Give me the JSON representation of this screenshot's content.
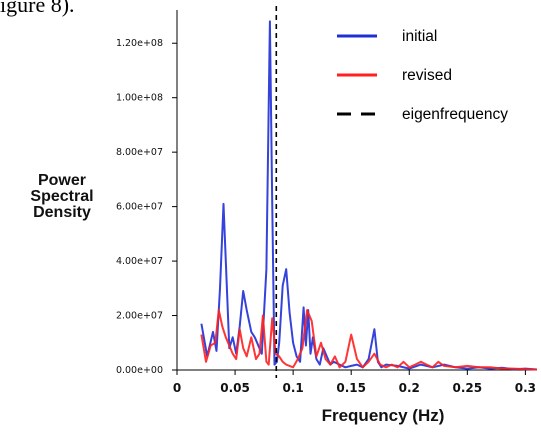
{
  "page": {
    "caption_fragment": "igure 8)."
  },
  "chart_data": {
    "type": "line",
    "title": "",
    "xlabel": "Frequency (Hz)",
    "ylabel": "Power Spectral Density",
    "ylabel_lines": [
      "Power",
      "Spectral",
      "Density"
    ],
    "xlim": [
      0,
      0.31
    ],
    "ylim": [
      0,
      130000000
    ],
    "x_ticks": [
      0,
      0.05,
      0.1,
      0.15,
      0.2,
      0.25,
      0.3
    ],
    "x_tick_labels": [
      "0",
      "0.05",
      "0.1",
      "0.15",
      "0.2",
      "0.25",
      "0.3"
    ],
    "y_ticks": [
      0,
      20000000,
      40000000,
      60000000,
      80000000,
      100000000,
      120000000
    ],
    "y_tick_labels": [
      "0.00e+00",
      "2.00e+07",
      "4.00e+07",
      "6.00e+07",
      "8.00e+07",
      "1.00e+08",
      "1.20e+08"
    ],
    "grid": false,
    "legend_position": "top-right",
    "series": [
      {
        "name": "initial",
        "color": "#1f2fd6",
        "style": "solid",
        "x": [
          0.021,
          0.026,
          0.031,
          0.034,
          0.037,
          0.04,
          0.042,
          0.045,
          0.048,
          0.051,
          0.054,
          0.057,
          0.06,
          0.064,
          0.067,
          0.07,
          0.073,
          0.077,
          0.08,
          0.082,
          0.084,
          0.086,
          0.088,
          0.091,
          0.094,
          0.097,
          0.1,
          0.103,
          0.106,
          0.109,
          0.111,
          0.113,
          0.115,
          0.117,
          0.12,
          0.123,
          0.126,
          0.129,
          0.132,
          0.135,
          0.14,
          0.145,
          0.15,
          0.155,
          0.16,
          0.165,
          0.17,
          0.173,
          0.176,
          0.18,
          0.19,
          0.2,
          0.21,
          0.22,
          0.23,
          0.24,
          0.25,
          0.26,
          0.27,
          0.28,
          0.29,
          0.3,
          0.31
        ],
        "values": [
          17000000,
          5000000,
          14000000,
          7000000,
          30000000,
          61000000,
          40000000,
          8000000,
          12000000,
          6000000,
          16000000,
          29000000,
          22000000,
          14000000,
          12000000,
          9000000,
          6000000,
          37000000,
          128000000,
          62000000,
          2000000,
          3000000,
          10000000,
          31000000,
          37000000,
          21000000,
          10000000,
          5000000,
          3000000,
          23000000,
          9000000,
          22000000,
          6000000,
          12000000,
          4000000,
          2000000,
          8000000,
          5000000,
          2000000,
          3000000,
          2000000,
          1000000,
          1500000,
          2000000,
          1000000,
          4000000,
          15000000,
          3000000,
          1000000,
          2000000,
          1500000,
          500000,
          2000000,
          1000000,
          2000000,
          1000000,
          500000,
          1000000,
          500000,
          800000,
          300000,
          500000,
          200000
        ]
      },
      {
        "name": "revised",
        "color": "#ff2020",
        "style": "solid",
        "x": [
          0.021,
          0.025,
          0.029,
          0.033,
          0.036,
          0.039,
          0.042,
          0.045,
          0.048,
          0.051,
          0.054,
          0.057,
          0.06,
          0.064,
          0.068,
          0.071,
          0.074,
          0.077,
          0.079,
          0.082,
          0.085,
          0.088,
          0.091,
          0.094,
          0.097,
          0.1,
          0.104,
          0.108,
          0.112,
          0.116,
          0.12,
          0.124,
          0.128,
          0.132,
          0.136,
          0.14,
          0.145,
          0.15,
          0.155,
          0.16,
          0.165,
          0.17,
          0.175,
          0.18,
          0.185,
          0.19,
          0.195,
          0.2,
          0.205,
          0.21,
          0.215,
          0.22,
          0.225,
          0.23,
          0.24,
          0.25,
          0.26,
          0.27,
          0.28,
          0.29,
          0.3,
          0.31
        ],
        "values": [
          13000000,
          3000000,
          9000000,
          10000000,
          22000000,
          16000000,
          12000000,
          9000000,
          6000000,
          4000000,
          15000000,
          8000000,
          5000000,
          12000000,
          4000000,
          6000000,
          20000000,
          3000000,
          2000000,
          19000000,
          6000000,
          5000000,
          3000000,
          2000000,
          1500000,
          1000000,
          4000000,
          8000000,
          22000000,
          18000000,
          5000000,
          10000000,
          4000000,
          2000000,
          5000000,
          1000000,
          3000000,
          13000000,
          4000000,
          1000000,
          3000000,
          6000000,
          2000000,
          1000000,
          2000000,
          1000000,
          3000000,
          1000000,
          2000000,
          3000000,
          2000000,
          1000000,
          3000000,
          1500000,
          1000000,
          1500000,
          1000000,
          1000000,
          500000,
          500000,
          300000,
          200000
        ]
      },
      {
        "name": "eigenfrequency",
        "color": "#000000",
        "style": "dashed",
        "vline_x": 0.0855
      }
    ]
  }
}
